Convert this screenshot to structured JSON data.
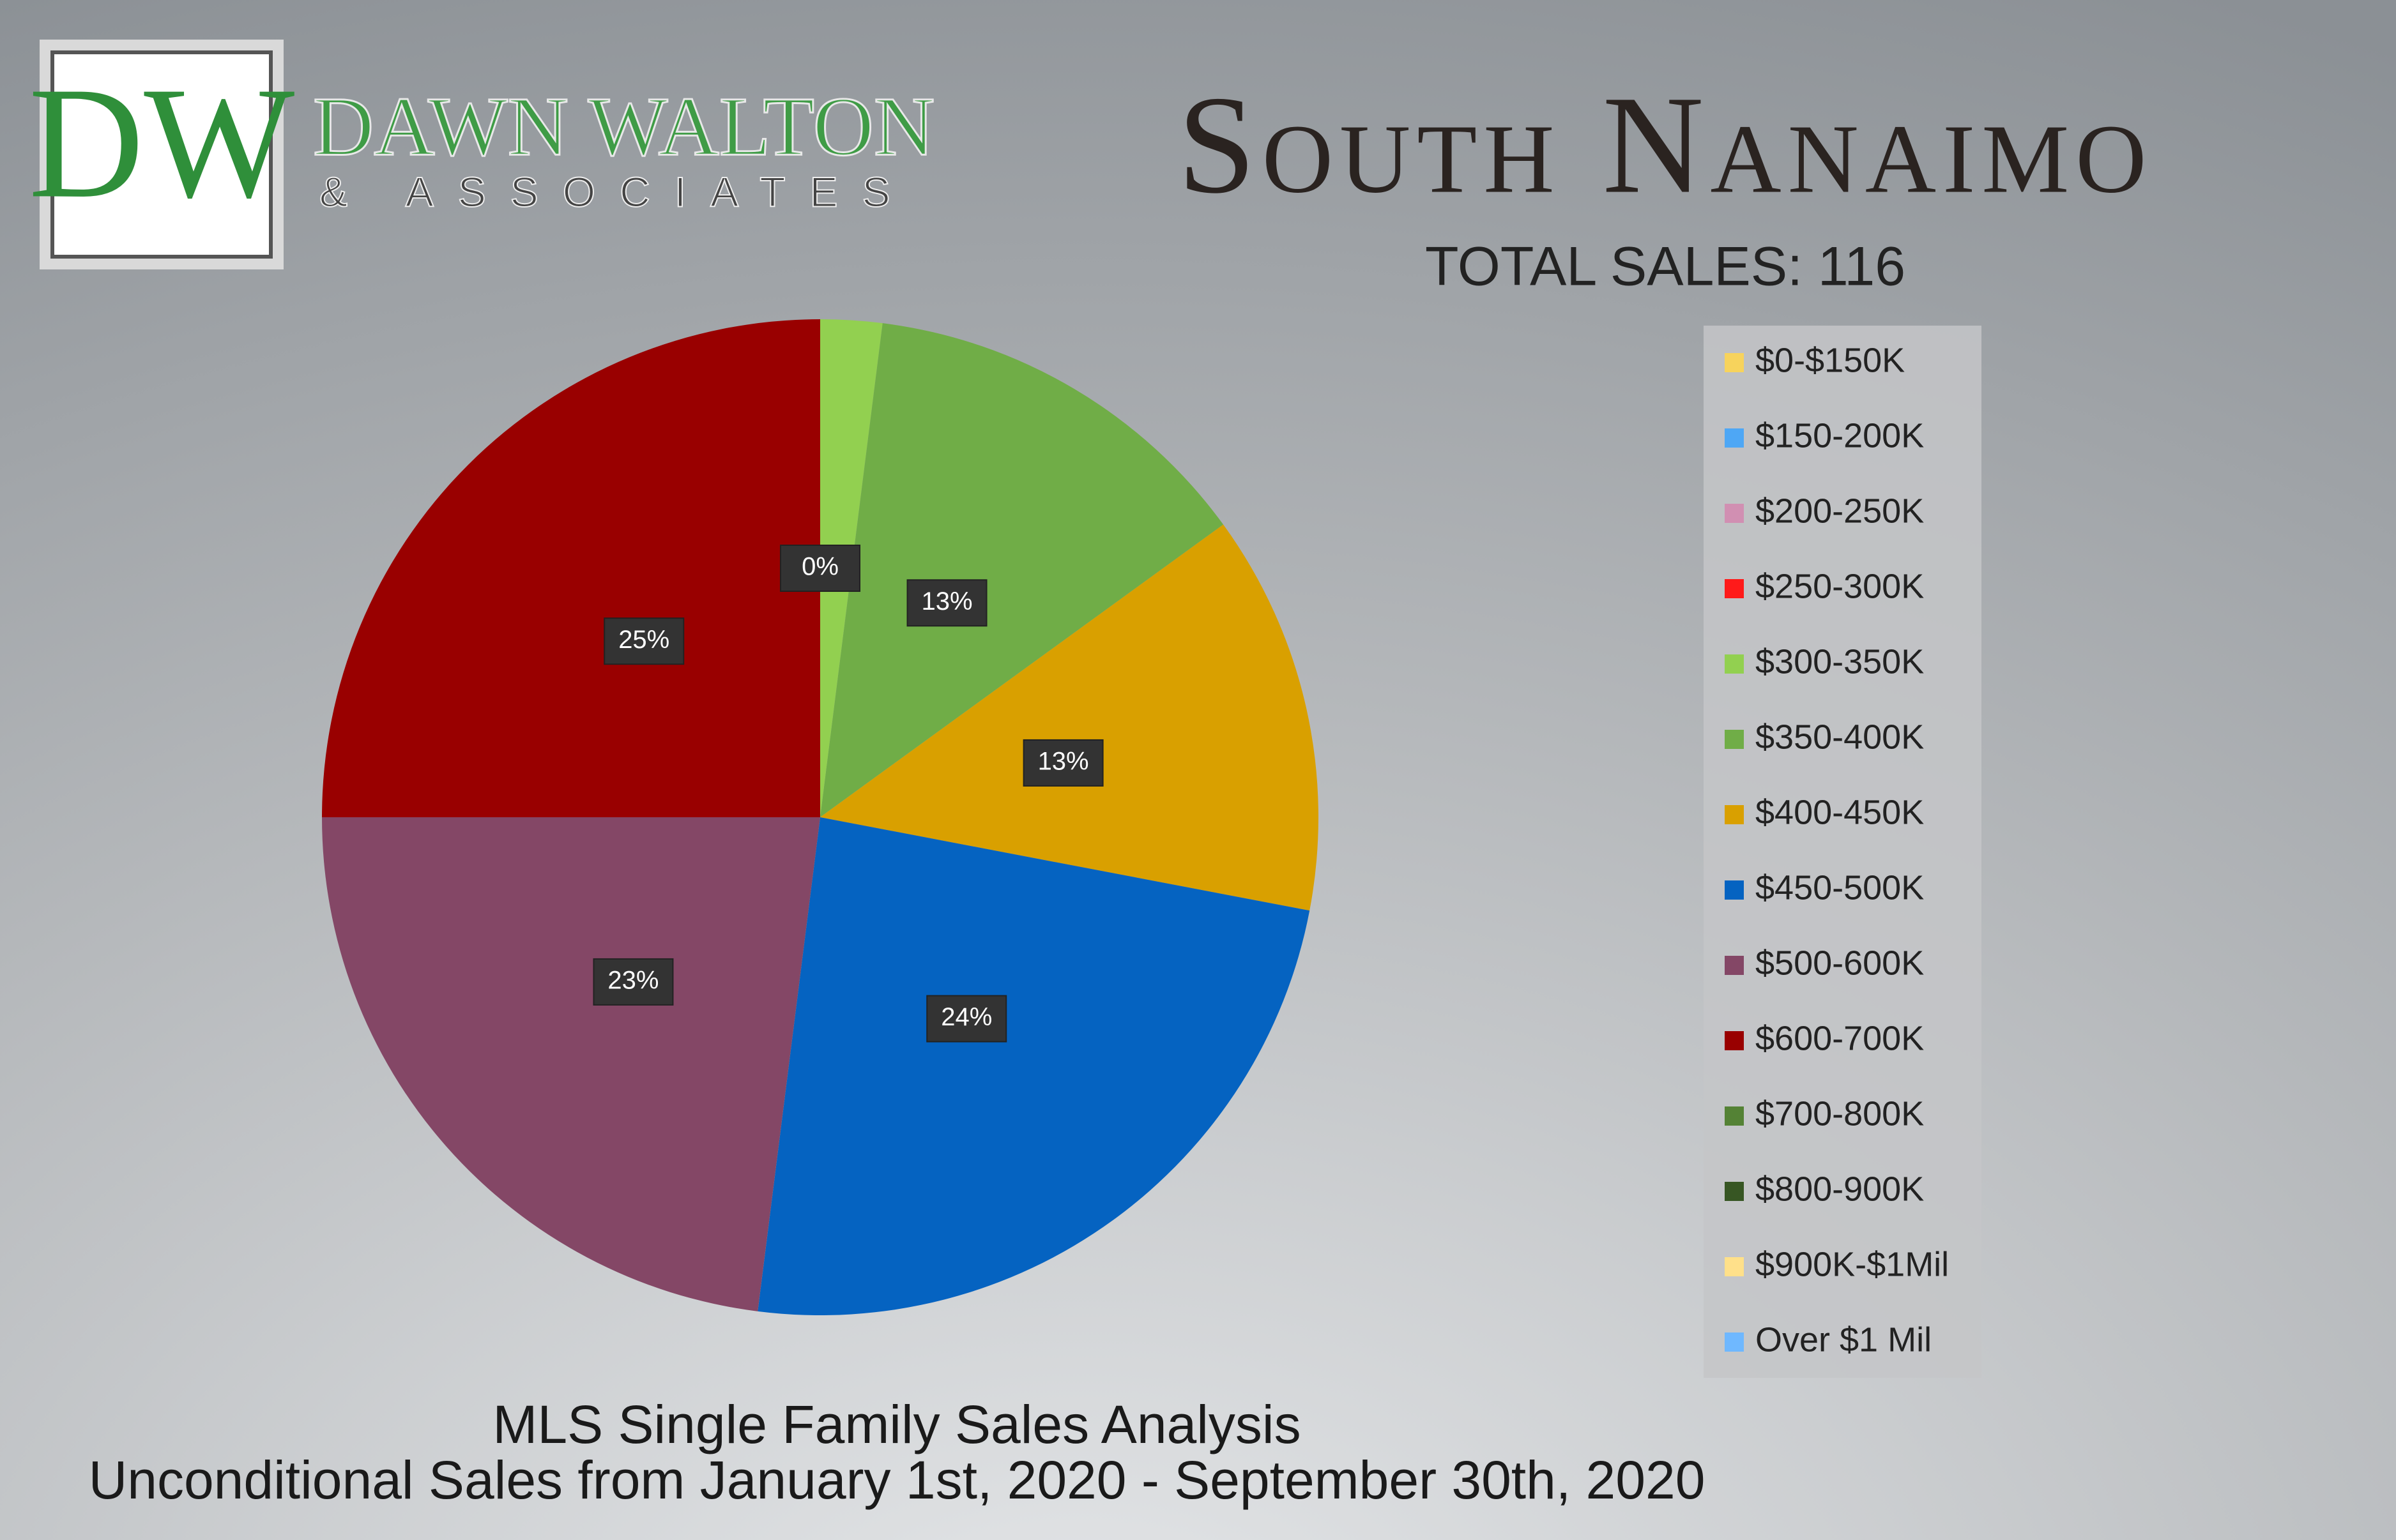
{
  "logo": {
    "monogram": "DW",
    "name": "DAWN WALTON",
    "tagline": "& ASSOCIATES"
  },
  "chart_data": {
    "type": "pie",
    "title": "South Nanaimo",
    "subtitle": "TOTAL SALES: 116",
    "footer": [
      "MLS Single Family Sales Analysis",
      "Unconditional Sales from January 1st, 2020 - September 30th, 2020"
    ],
    "categories": [
      "$0-$150K",
      "$150-200K",
      "$200-250K",
      "$250-300K",
      "$300-350K",
      "$350-400K",
      "$400-450K",
      "$450-500K",
      "$500-600K",
      "$600-700K",
      "$700-800K",
      "$800-900K",
      "$900K-$1Mil",
      "Over $1 Mil"
    ],
    "values": [
      0,
      0,
      0,
      0,
      2,
      13,
      13,
      24,
      23,
      25,
      0,
      0,
      0,
      0
    ],
    "value_labels": [
      null,
      null,
      null,
      "0%",
      null,
      "13%",
      "13%",
      "24%",
      "23%",
      "25%",
      null,
      null,
      null,
      null
    ],
    "colors": [
      "#f7d35c",
      "#4ea7f5",
      "#d18fb2",
      "#ff1a1a",
      "#92d050",
      "#70ad47",
      "#d9a000",
      "#0563c1",
      "#844766",
      "#990000",
      "#548235",
      "#375623",
      "#ffe08a",
      "#6fb8ff"
    ],
    "legend": "right"
  }
}
